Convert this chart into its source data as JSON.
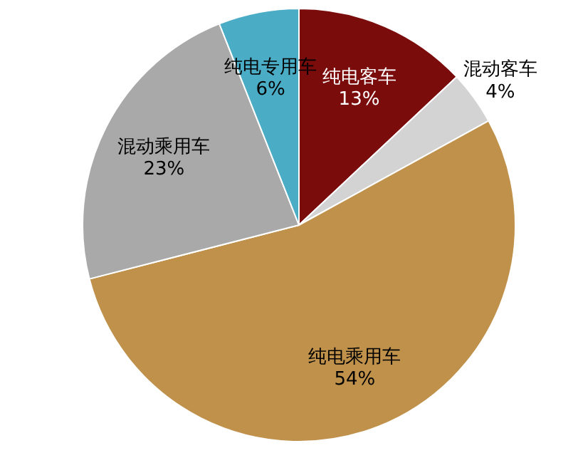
{
  "chart_data": {
    "type": "pie",
    "categories": [
      "纯电客车",
      "混动客车",
      "纯电乘用车",
      "混动乘用车",
      "纯电专用车"
    ],
    "values": [
      13,
      4,
      54,
      23,
      6
    ],
    "colors": [
      "#7b0c0c",
      "#d3d3d3",
      "#bf914b",
      "#a9a9a9",
      "#4bacc6"
    ],
    "value_labels": [
      "13%",
      "4%",
      "54%",
      "23%",
      "6%"
    ]
  }
}
